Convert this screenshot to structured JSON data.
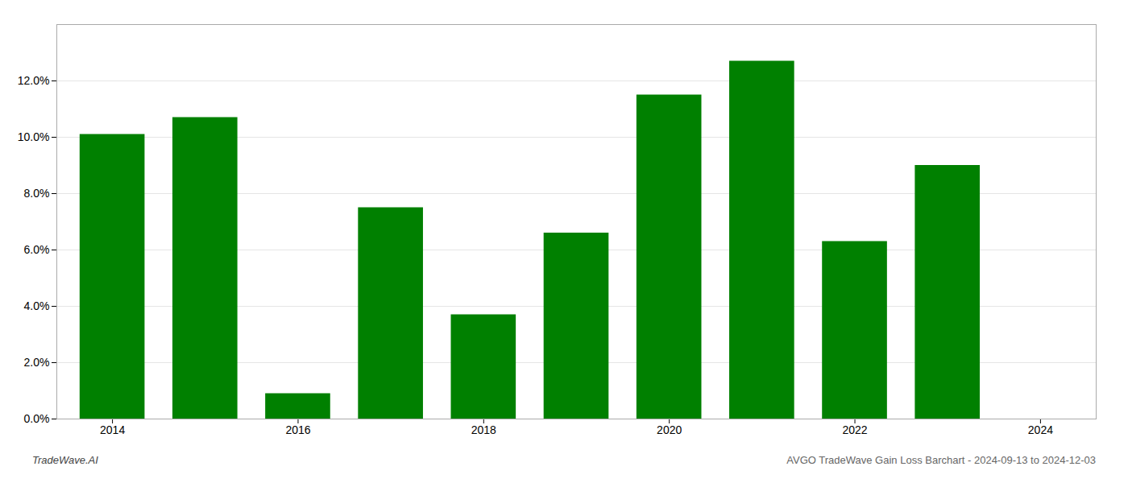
{
  "chart_data": {
    "type": "bar",
    "x": [
      2014,
      2015,
      2016,
      2017,
      2018,
      2019,
      2020,
      2021,
      2022,
      2023
    ],
    "values": [
      0.101,
      0.107,
      0.009,
      0.075,
      0.037,
      0.066,
      0.115,
      0.127,
      0.063,
      0.09
    ],
    "color": "#008000",
    "xlim": [
      2013.4,
      2024.6
    ],
    "xticks": [
      2014,
      2016,
      2018,
      2020,
      2022,
      2024
    ],
    "ylim": [
      0,
      0.14
    ],
    "yticks": [
      {
        "value": 0.0,
        "label": "0.0%"
      },
      {
        "value": 0.02,
        "label": "2.0%"
      },
      {
        "value": 0.04,
        "label": "4.0%"
      },
      {
        "value": 0.06,
        "label": "6.0%"
      },
      {
        "value": 0.08,
        "label": "8.0%"
      },
      {
        "value": 0.1,
        "label": "10.0%"
      },
      {
        "value": 0.12,
        "label": "12.0%"
      }
    ],
    "grid": true,
    "annotations": [
      "TradeWave.AI",
      "AVGO TradeWave Gain Loss Barchart - 2024-09-13 to 2024-12-03"
    ]
  }
}
